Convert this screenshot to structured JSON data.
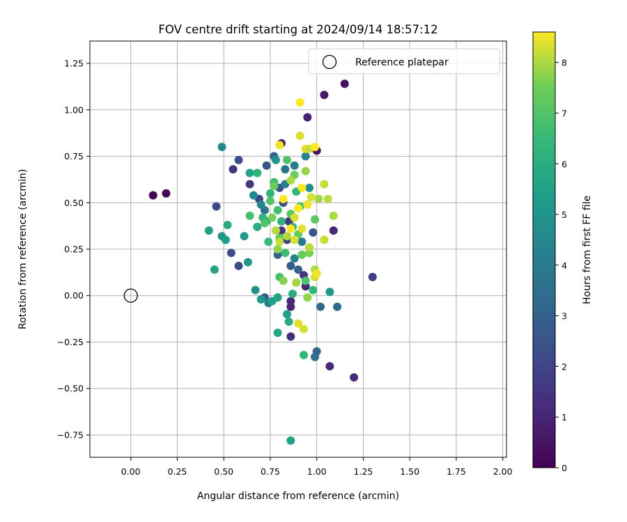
{
  "chart_data": {
    "type": "scatter",
    "title": "FOV centre drift starting at 2024/09/14 18:57:12",
    "xlabel": "Angular distance from reference (arcmin)",
    "ylabel": "Rotation from reference (arcmin)",
    "xlim": [
      -0.22,
      2.02
    ],
    "ylim": [
      -0.87,
      1.37
    ],
    "xticks": [
      0.0,
      0.25,
      0.5,
      0.75,
      1.0,
      1.25,
      1.5,
      1.75,
      2.0
    ],
    "xtick_labels": [
      "0.00",
      "0.25",
      "0.50",
      "0.75",
      "1.00",
      "1.25",
      "1.50",
      "1.75",
      "2.00"
    ],
    "yticks": [
      -0.75,
      -0.5,
      -0.25,
      0.0,
      0.25,
      0.5,
      0.75,
      1.0,
      1.25
    ],
    "ytick_labels": [
      "−0.75",
      "−0.50",
      "−0.25",
      "0.00",
      "0.25",
      "0.50",
      "0.75",
      "1.00",
      "1.25"
    ],
    "grid": true,
    "legend": {
      "placement": "top-right",
      "entries": [
        "Reference platepar"
      ]
    },
    "reference_point": {
      "x": 0.0,
      "y": 0.0,
      "marker": "hollow-circle"
    },
    "colorbar": {
      "label": "Hours from first FF file",
      "colormap": "viridis",
      "range": [
        0,
        8.6
      ],
      "ticks": [
        0,
        1,
        2,
        3,
        4,
        5,
        6,
        7,
        8
      ],
      "tick_labels": [
        "0",
        "1",
        "2",
        "3",
        "4",
        "5",
        "6",
        "7",
        "8"
      ]
    },
    "points": [
      {
        "x": 0.12,
        "y": 0.54,
        "h": 0.0
      },
      {
        "x": 0.19,
        "y": 0.55,
        "h": 0.1
      },
      {
        "x": 1.15,
        "y": 1.14,
        "h": 0.4
      },
      {
        "x": 1.04,
        "y": 1.08,
        "h": 0.7
      },
      {
        "x": 0.95,
        "y": 0.96,
        "h": 0.9
      },
      {
        "x": 0.81,
        "y": 0.82,
        "h": 0.8
      },
      {
        "x": 1.0,
        "y": 0.78,
        "h": 0.6
      },
      {
        "x": 1.3,
        "y": 0.1,
        "h": 1.8
      },
      {
        "x": 1.2,
        "y": -0.44,
        "h": 1.2
      },
      {
        "x": 1.07,
        "y": -0.38,
        "h": 1.1
      },
      {
        "x": 0.86,
        "y": -0.22,
        "h": 1.3
      },
      {
        "x": 0.86,
        "y": -0.06,
        "h": 1.0
      },
      {
        "x": 0.86,
        "y": -0.03,
        "h": 1.2
      },
      {
        "x": 0.94,
        "y": 0.05,
        "h": 1.1
      },
      {
        "x": 1.09,
        "y": 0.35,
        "h": 1.1
      },
      {
        "x": 0.46,
        "y": 0.48,
        "h": 2.2
      },
      {
        "x": 0.55,
        "y": 0.68,
        "h": 1.4
      },
      {
        "x": 0.58,
        "y": 0.73,
        "h": 2.3
      },
      {
        "x": 0.64,
        "y": 0.6,
        "h": 1.6
      },
      {
        "x": 0.58,
        "y": 0.16,
        "h": 2.3
      },
      {
        "x": 0.54,
        "y": 0.23,
        "h": 2.4
      },
      {
        "x": 0.69,
        "y": 0.52,
        "h": 2.0
      },
      {
        "x": 0.73,
        "y": 0.7,
        "h": 2.6
      },
      {
        "x": 0.77,
        "y": 0.75,
        "h": 3.0
      },
      {
        "x": 0.8,
        "y": 0.58,
        "h": 2.6
      },
      {
        "x": 0.82,
        "y": 0.5,
        "h": 2.4
      },
      {
        "x": 0.85,
        "y": 0.4,
        "h": 1.5
      },
      {
        "x": 0.81,
        "y": 0.35,
        "h": 1.5
      },
      {
        "x": 0.84,
        "y": 0.3,
        "h": 1.9
      },
      {
        "x": 0.79,
        "y": 0.22,
        "h": 3.1
      },
      {
        "x": 0.86,
        "y": 0.16,
        "h": 2.7
      },
      {
        "x": 0.9,
        "y": 0.14,
        "h": 3.0
      },
      {
        "x": 0.93,
        "y": 0.11,
        "h": 1.5
      },
      {
        "x": 0.98,
        "y": 0.34,
        "h": 2.6
      },
      {
        "x": 1.0,
        "y": -0.3,
        "h": 3.2
      },
      {
        "x": 0.99,
        "y": -0.33,
        "h": 3.5
      },
      {
        "x": 1.11,
        "y": -0.06,
        "h": 3.4
      },
      {
        "x": 1.02,
        "y": -0.06,
        "h": 3.3
      },
      {
        "x": 0.72,
        "y": -0.01,
        "h": 2.8
      },
      {
        "x": 0.74,
        "y": -0.04,
        "h": 4.2
      },
      {
        "x": 0.49,
        "y": 0.8,
        "h": 4.5
      },
      {
        "x": 0.72,
        "y": 0.46,
        "h": 3.6
      },
      {
        "x": 0.83,
        "y": 0.68,
        "h": 3.7
      },
      {
        "x": 0.88,
        "y": 0.7,
        "h": 4.0
      },
      {
        "x": 0.94,
        "y": 0.75,
        "h": 4.3
      },
      {
        "x": 0.83,
        "y": 0.6,
        "h": 4.1
      },
      {
        "x": 0.78,
        "y": 0.73,
        "h": 5.0
      },
      {
        "x": 0.66,
        "y": 0.54,
        "h": 4.6
      },
      {
        "x": 0.7,
        "y": 0.49,
        "h": 4.4
      },
      {
        "x": 0.88,
        "y": 0.2,
        "h": 4.2
      },
      {
        "x": 0.92,
        "y": 0.29,
        "h": 4.0
      },
      {
        "x": 0.96,
        "y": 0.58,
        "h": 4.8
      },
      {
        "x": 0.63,
        "y": 0.18,
        "h": 5.0
      },
      {
        "x": 0.49,
        "y": 0.32,
        "h": 5.1
      },
      {
        "x": 0.51,
        "y": 0.3,
        "h": 5.3
      },
      {
        "x": 0.61,
        "y": 0.32,
        "h": 5.2
      },
      {
        "x": 0.67,
        "y": 0.03,
        "h": 4.9
      },
      {
        "x": 0.7,
        "y": -0.02,
        "h": 5.2
      },
      {
        "x": 0.76,
        "y": -0.03,
        "h": 5.4
      },
      {
        "x": 0.79,
        "y": -0.01,
        "h": 5.6
      },
      {
        "x": 0.84,
        "y": -0.1,
        "h": 5.5
      },
      {
        "x": 0.85,
        "y": -0.14,
        "h": 5.9
      },
      {
        "x": 0.79,
        "y": -0.2,
        "h": 5.7
      },
      {
        "x": 0.86,
        "y": -0.78,
        "h": 5.5
      },
      {
        "x": 1.07,
        "y": 0.02,
        "h": 5.2
      },
      {
        "x": 0.45,
        "y": 0.14,
        "h": 5.6
      },
      {
        "x": 0.42,
        "y": 0.35,
        "h": 5.5
      },
      {
        "x": 0.52,
        "y": 0.38,
        "h": 5.8
      },
      {
        "x": 0.64,
        "y": 0.66,
        "h": 5.6
      },
      {
        "x": 0.68,
        "y": 0.66,
        "h": 6.2
      },
      {
        "x": 0.73,
        "y": 0.4,
        "h": 5.8
      },
      {
        "x": 0.68,
        "y": 0.37,
        "h": 6.0
      },
      {
        "x": 0.71,
        "y": 0.42,
        "h": 6.3
      },
      {
        "x": 0.75,
        "y": 0.55,
        "h": 6.3
      },
      {
        "x": 0.77,
        "y": 0.61,
        "h": 6.6
      },
      {
        "x": 0.79,
        "y": 0.46,
        "h": 6.7
      },
      {
        "x": 0.81,
        "y": 0.4,
        "h": 6.1
      },
      {
        "x": 0.87,
        "y": 0.37,
        "h": 6.2
      },
      {
        "x": 0.89,
        "y": 0.56,
        "h": 6.4
      },
      {
        "x": 0.91,
        "y": 0.48,
        "h": 6.8
      },
      {
        "x": 0.74,
        "y": 0.29,
        "h": 6.5
      },
      {
        "x": 0.83,
        "y": 0.23,
        "h": 6.6
      },
      {
        "x": 0.8,
        "y": 0.1,
        "h": 6.8
      },
      {
        "x": 0.87,
        "y": 0.01,
        "h": 6.0
      },
      {
        "x": 0.93,
        "y": -0.32,
        "h": 6.4
      },
      {
        "x": 0.98,
        "y": 0.03,
        "h": 6.4
      },
      {
        "x": 0.64,
        "y": 0.43,
        "h": 6.8
      },
      {
        "x": 0.72,
        "y": 0.39,
        "h": 7.0
      },
      {
        "x": 0.75,
        "y": 0.51,
        "h": 7.0
      },
      {
        "x": 0.8,
        "y": 0.31,
        "h": 7.2
      },
      {
        "x": 0.84,
        "y": 0.73,
        "h": 7.0
      },
      {
        "x": 0.86,
        "y": 0.44,
        "h": 7.2
      },
      {
        "x": 0.9,
        "y": 0.33,
        "h": 7.3
      },
      {
        "x": 0.92,
        "y": 0.22,
        "h": 7.4
      },
      {
        "x": 0.94,
        "y": 0.08,
        "h": 6.9
      },
      {
        "x": 0.96,
        "y": 0.23,
        "h": 7.6
      },
      {
        "x": 0.99,
        "y": 0.41,
        "h": 7.2
      },
      {
        "x": 0.77,
        "y": 0.59,
        "h": 7.4
      },
      {
        "x": 0.88,
        "y": 0.65,
        "h": 7.5
      },
      {
        "x": 0.94,
        "y": 0.67,
        "h": 7.8
      },
      {
        "x": 0.82,
        "y": 0.08,
        "h": 7.7
      },
      {
        "x": 0.89,
        "y": 0.07,
        "h": 7.9
      },
      {
        "x": 0.95,
        "y": -0.01,
        "h": 7.8
      },
      {
        "x": 0.99,
        "y": 0.14,
        "h": 8.0
      },
      {
        "x": 1.01,
        "y": 0.52,
        "h": 7.9
      },
      {
        "x": 1.04,
        "y": 0.6,
        "h": 8.2
      },
      {
        "x": 1.06,
        "y": 0.52,
        "h": 8.1
      },
      {
        "x": 1.09,
        "y": 0.43,
        "h": 8.0
      },
      {
        "x": 1.04,
        "y": 0.3,
        "h": 8.2
      },
      {
        "x": 0.9,
        "y": -0.15,
        "h": 8.4
      },
      {
        "x": 0.93,
        "y": -0.18,
        "h": 8.3
      },
      {
        "x": 0.8,
        "y": 0.81,
        "h": 8.5
      },
      {
        "x": 0.91,
        "y": 1.04,
        "h": 8.6
      },
      {
        "x": 0.91,
        "y": 0.86,
        "h": 8.3
      },
      {
        "x": 0.94,
        "y": 0.79,
        "h": 8.4
      },
      {
        "x": 0.96,
        "y": 0.79,
        "h": 8.2
      },
      {
        "x": 0.99,
        "y": 0.8,
        "h": 8.6
      },
      {
        "x": 0.86,
        "y": 0.62,
        "h": 8.0
      },
      {
        "x": 0.92,
        "y": 0.58,
        "h": 8.6
      },
      {
        "x": 0.95,
        "y": 0.49,
        "h": 8.5
      },
      {
        "x": 0.97,
        "y": 0.53,
        "h": 8.3
      },
      {
        "x": 0.9,
        "y": 0.47,
        "h": 8.6
      },
      {
        "x": 0.82,
        "y": 0.52,
        "h": 8.6
      },
      {
        "x": 0.88,
        "y": 0.42,
        "h": 8.3
      },
      {
        "x": 0.86,
        "y": 0.36,
        "h": 8.6
      },
      {
        "x": 0.8,
        "y": 0.29,
        "h": 8.2
      },
      {
        "x": 0.92,
        "y": 0.36,
        "h": 8.4
      },
      {
        "x": 0.96,
        "y": 0.26,
        "h": 8.1
      },
      {
        "x": 0.99,
        "y": 0.1,
        "h": 8.3
      },
      {
        "x": 1.0,
        "y": 0.12,
        "h": 8.5
      },
      {
        "x": 0.78,
        "y": 0.35,
        "h": 8.1
      },
      {
        "x": 0.84,
        "y": 0.32,
        "h": 8.0
      },
      {
        "x": 0.88,
        "y": 0.3,
        "h": 8.3
      },
      {
        "x": 0.76,
        "y": 0.42,
        "h": 7.6
      },
      {
        "x": 0.79,
        "y": 0.25,
        "h": 7.8
      }
    ]
  }
}
